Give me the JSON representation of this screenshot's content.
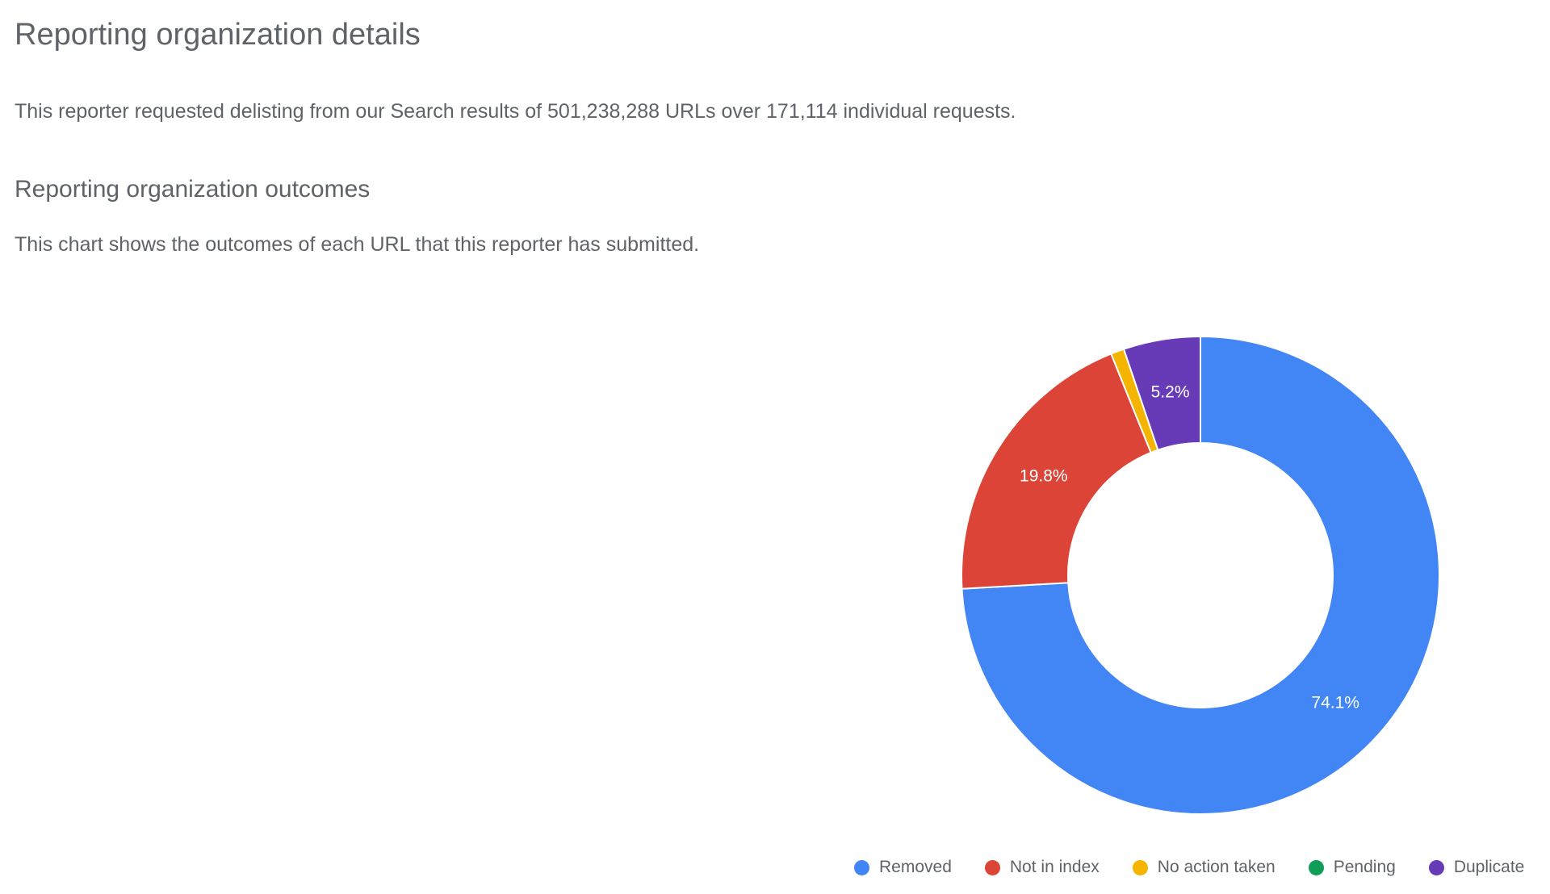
{
  "page": {
    "title": "Reporting organization details",
    "summary": "This reporter requested delisting from our Search results of 501,238,288 URLs over 171,114 individual requests.",
    "section_title": "Reporting organization outcomes",
    "section_description": "This chart shows the outcomes of each URL that this reporter has submitted."
  },
  "chart_data": {
    "type": "pie",
    "donut": true,
    "legend_position": "bottom",
    "slices": [
      {
        "name": "Removed",
        "value": 74.1,
        "label": "74.1%",
        "color": "#4285f4"
      },
      {
        "name": "Not in index",
        "value": 19.8,
        "label": "19.8%",
        "color": "#db4437"
      },
      {
        "name": "No action taken",
        "value": 0.9,
        "label": "",
        "color": "#f4b400"
      },
      {
        "name": "Pending",
        "value": 0.0,
        "label": "",
        "color": "#0f9d58"
      },
      {
        "name": "Duplicate",
        "value": 5.2,
        "label": "5.2%",
        "color": "#673ab7"
      }
    ]
  }
}
